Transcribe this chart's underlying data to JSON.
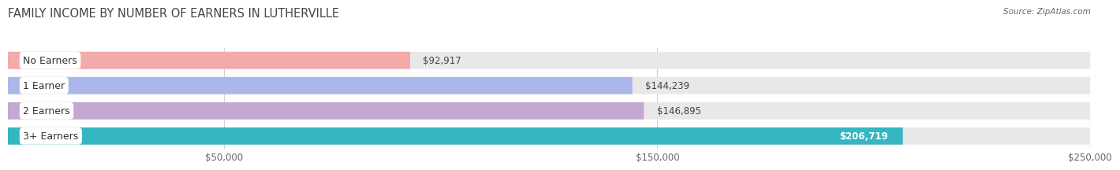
{
  "title": "FAMILY INCOME BY NUMBER OF EARNERS IN LUTHERVILLE",
  "source": "Source: ZipAtlas.com",
  "categories": [
    "No Earners",
    "1 Earner",
    "2 Earners",
    "3+ Earners"
  ],
  "values": [
    92917,
    144239,
    146895,
    206719
  ],
  "bar_colors": [
    "#f2aaaa",
    "#a9b8e8",
    "#c3a8d1",
    "#35b6c0"
  ],
  "value_labels": [
    "$92,917",
    "$144,239",
    "$146,895",
    "$206,719"
  ],
  "value_inside": [
    false,
    false,
    false,
    true
  ],
  "xlim_start": 0,
  "xlim_end": 250000,
  "xticks": [
    50000,
    150000,
    250000
  ],
  "xtick_labels": [
    "$50,000",
    "$150,000",
    "$250,000"
  ],
  "background_color": "#ffffff",
  "bar_bg_color": "#e8e8e8",
  "grid_color": "#d0d0d0",
  "title_fontsize": 10.5,
  "label_fontsize": 9,
  "value_fontsize": 8.5,
  "tick_fontsize": 8.5,
  "bar_height": 0.68,
  "bar_gap": 0.32
}
